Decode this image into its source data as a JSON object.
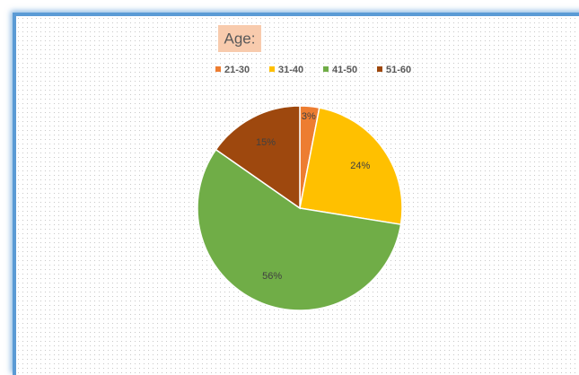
{
  "chart_data": {
    "type": "pie",
    "title": "Age:",
    "categories": [
      "21-30",
      "31-40",
      "41-50",
      "51-60"
    ],
    "values": [
      3,
      24,
      56,
      15
    ],
    "value_labels": [
      "3%",
      "24%",
      "56%",
      "15%"
    ],
    "colors": [
      "#ed7d31",
      "#ffc000",
      "#70ad47",
      "#9e480e"
    ],
    "legend": "top"
  }
}
